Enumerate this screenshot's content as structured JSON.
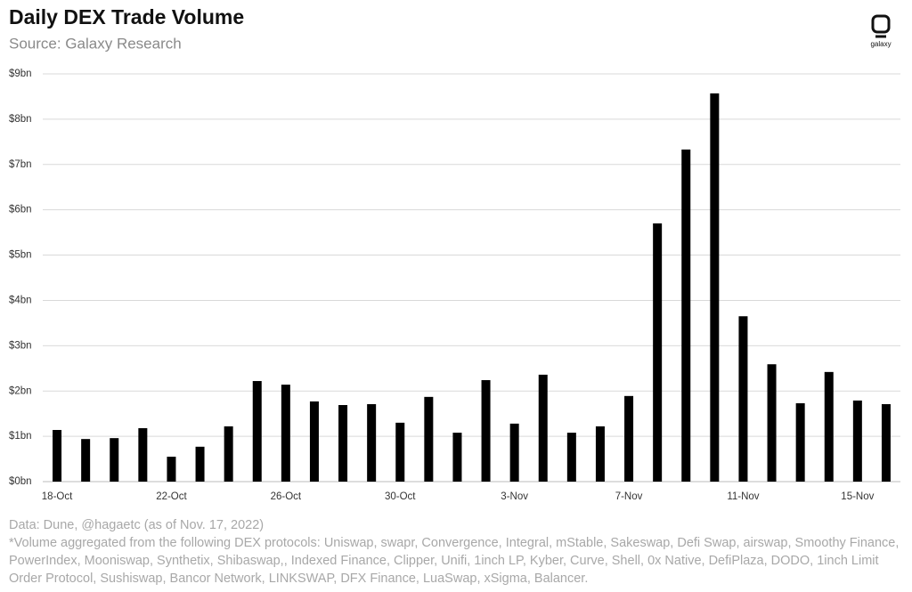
{
  "chart_data": {
    "type": "bar",
    "title": "Daily DEX Trade Volume",
    "subtitle": "Source: Galaxy Research",
    "categories": [
      "18-Oct",
      null,
      null,
      null,
      "22-Oct",
      null,
      null,
      null,
      "26-Oct",
      null,
      null,
      null,
      "30-Oct",
      null,
      null,
      null,
      "3-Nov",
      null,
      null,
      null,
      "7-Nov",
      null,
      null,
      null,
      "11-Nov",
      null,
      null,
      null,
      "15-Nov",
      null
    ],
    "values": [
      1.14,
      0.94,
      0.96,
      1.18,
      0.55,
      0.77,
      1.22,
      2.22,
      2.14,
      1.77,
      1.69,
      1.71,
      1.3,
      1.87,
      1.08,
      2.24,
      1.28,
      2.36,
      1.08,
      1.22,
      1.89,
      5.7,
      7.33,
      8.57,
      3.65,
      2.59,
      1.73,
      2.42,
      1.79,
      1.71
    ],
    "color": "#000000",
    "ylim": [
      0,
      9
    ],
    "yticks": [
      {
        "value": 0,
        "label": "$0bn"
      },
      {
        "value": 1,
        "label": "$1bn"
      },
      {
        "value": 2,
        "label": "$2bn"
      },
      {
        "value": 3,
        "label": "$3bn"
      },
      {
        "value": 4,
        "label": "$4bn"
      },
      {
        "value": 5,
        "label": "$5bn"
      },
      {
        "value": 6,
        "label": "$6bn"
      },
      {
        "value": 7,
        "label": "$7bn"
      },
      {
        "value": 8,
        "label": "$8bn"
      },
      {
        "value": 9,
        "label": "$9bn"
      }
    ],
    "grid": true,
    "notes": [
      "Data: Dune, @hagaetc (as of Nov. 17, 2022)",
      "*Volume aggregated from the following DEX protocols: Uniswap, swapr, Convergence, Integral, mStable, Sakeswap, Defi Swap, airswap, Smoothy Finance, PowerIndex, Mooniswap, Synthetix, Shibaswap,, Indexed Finance, Clipper, Unifi, 1inch LP, Kyber, Curve, Shell, 0x Native, DefiPlaza, DODO, 1inch Limit Order Protocol, Sushiswap, Bancor Network, LINKSWAP, DFX Finance, LuaSwap, xSigma, Balancer."
    ]
  },
  "logo": "galaxy"
}
